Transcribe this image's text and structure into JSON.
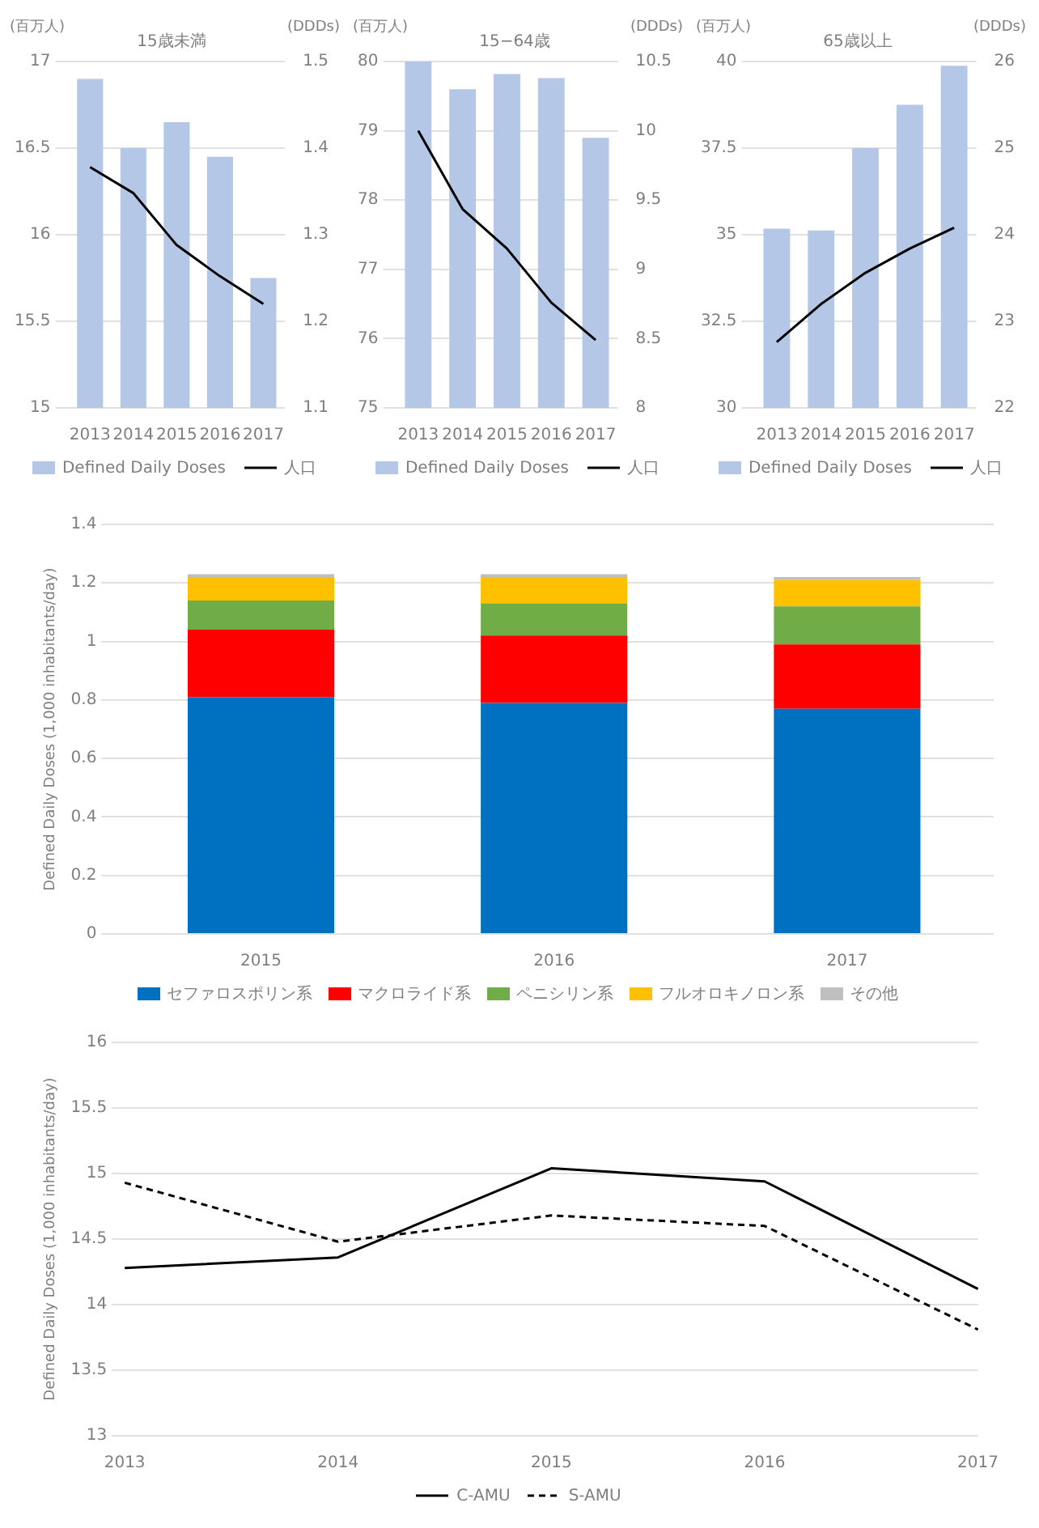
{
  "chart_data": [
    {
      "type": "bar",
      "title": "15歳未満",
      "ylabel": "(百万人)",
      "y2label": "(DDDs)",
      "categories": [
        "2013",
        "2014",
        "2015",
        "2016",
        "2017"
      ],
      "series": [
        {
          "name": "Defined Daily Doses",
          "type": "bar",
          "axis": "y2",
          "color": "#b4c7e7",
          "values": [
            1.48,
            1.4,
            1.43,
            1.39,
            1.25
          ]
        },
        {
          "name": "人口",
          "type": "line",
          "color": "#000000",
          "values": [
            16.39,
            16.24,
            15.94,
            15.76,
            15.6
          ]
        }
      ],
      "ylim": [
        15,
        17
      ],
      "yticks": [
        15,
        15.5,
        16,
        16.5,
        17
      ],
      "y2lim": [
        1.1,
        1.5
      ],
      "y2ticks": [
        1.1,
        1.2,
        1.3,
        1.4,
        1.5
      ],
      "grid": "y",
      "legend": "bottom",
      "marker": "none"
    },
    {
      "type": "bar",
      "title": "15−64歳",
      "ylabel": "(百万人)",
      "y2label": "(DDDs)",
      "categories": [
        "2013",
        "2014",
        "2015",
        "2016",
        "2017"
      ],
      "series": [
        {
          "name": "Defined Daily Doses",
          "type": "bar",
          "axis": "y2",
          "color": "#b4c7e7",
          "values": [
            10.5,
            10.3,
            10.41,
            10.38,
            9.95
          ]
        },
        {
          "name": "人口",
          "type": "line",
          "color": "#000000",
          "values": [
            79.0,
            77.87,
            77.3,
            76.52,
            75.98
          ]
        }
      ],
      "ylim": [
        75,
        80
      ],
      "yticks": [
        75,
        76,
        77,
        78,
        79,
        80
      ],
      "y2lim": [
        8,
        10.5
      ],
      "y2ticks": [
        8,
        8.5,
        9,
        9.5,
        10,
        10.5
      ],
      "grid": "y",
      "legend": "bottom",
      "marker": "none"
    },
    {
      "type": "bar",
      "title": "65歳以上",
      "ylabel": "(百万人)",
      "y2label": "(DDDs)",
      "categories": [
        "2013",
        "2014",
        "2015",
        "2016",
        "2017"
      ],
      "series": [
        {
          "name": "Defined Daily Doses",
          "type": "bar",
          "axis": "y2",
          "color": "#b4c7e7",
          "values": [
            24.07,
            24.05,
            25.0,
            25.5,
            25.95
          ]
        },
        {
          "name": "人口",
          "type": "line",
          "color": "#000000",
          "values": [
            31.9,
            33.0,
            33.9,
            34.6,
            35.2
          ]
        }
      ],
      "ylim": [
        30,
        40
      ],
      "yticks": [
        30,
        32.5,
        35,
        37.5,
        40
      ],
      "y2lim": [
        22,
        26
      ],
      "y2ticks": [
        22,
        23,
        24,
        25,
        26
      ],
      "grid": "y",
      "legend": "bottom",
      "marker": "none"
    },
    {
      "type": "bar",
      "stacked": true,
      "ylabel": "Defined Daily Doses (1,000 inhabitants/day)",
      "categories": [
        "2015",
        "2016",
        "2017"
      ],
      "series": [
        {
          "name": "セファロスポリン系",
          "color": "#0070c0",
          "values": [
            0.81,
            0.79,
            0.77
          ]
        },
        {
          "name": "マクロライド系",
          "color": "#ff0000",
          "values": [
            0.23,
            0.23,
            0.22
          ]
        },
        {
          "name": "ペニシリン系",
          "color": "#70ad47",
          "values": [
            0.1,
            0.11,
            0.13
          ]
        },
        {
          "name": "フルオロキノロン系",
          "color": "#ffc000",
          "values": [
            0.08,
            0.09,
            0.09
          ]
        },
        {
          "name": "その他",
          "color": "#bfbfbf",
          "values": [
            0.01,
            0.01,
            0.01
          ]
        }
      ],
      "ylim": [
        0,
        1.4
      ],
      "yticks": [
        0,
        0.2,
        0.4,
        0.6,
        0.8,
        1,
        1.2,
        1.4
      ],
      "grid": "y",
      "legend": "bottom"
    },
    {
      "type": "line",
      "ylabel": "Defined Daily Doses (1,000 inhabitants/day)",
      "categories": [
        "2013",
        "2014",
        "2015",
        "2016",
        "2017"
      ],
      "series": [
        {
          "name": "C-AMU",
          "color": "#000000",
          "line_style": "solid",
          "values": [
            14.28,
            14.36,
            15.04,
            14.94,
            14.12
          ]
        },
        {
          "name": "S-AMU",
          "color": "#000000",
          "line_style": "dashed",
          "values": [
            14.93,
            14.48,
            14.68,
            14.6,
            13.81
          ]
        }
      ],
      "ylim": [
        13,
        16
      ],
      "yticks": [
        13,
        13.5,
        14,
        14.5,
        15,
        15.5,
        16
      ],
      "grid": "y",
      "legend": "bottom",
      "marker": "none"
    }
  ]
}
